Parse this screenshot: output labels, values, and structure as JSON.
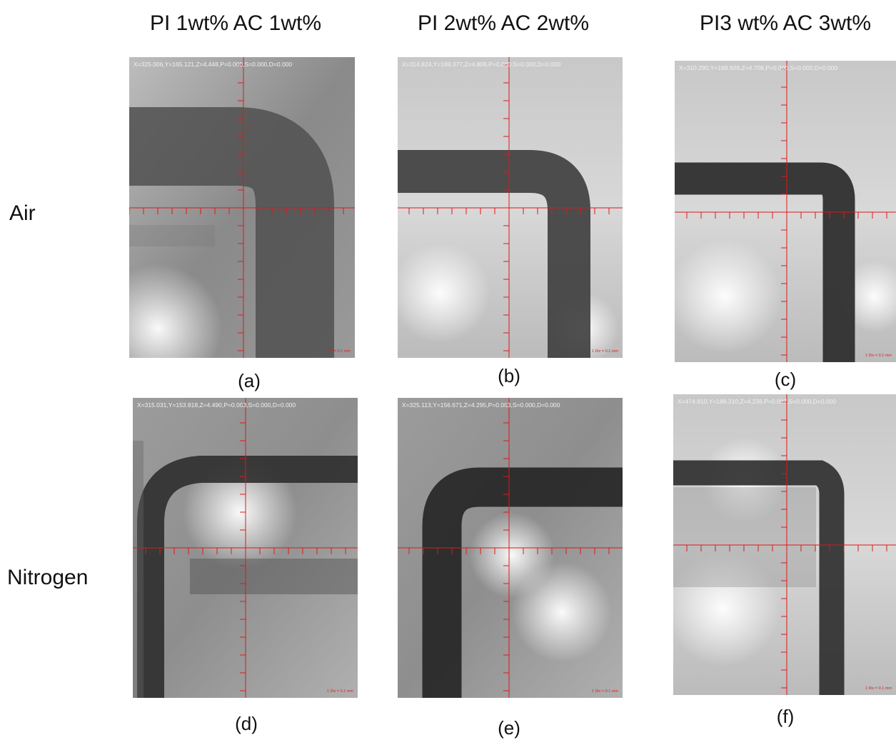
{
  "column_headers": [
    "PI 1wt% AC 1wt%",
    "PI 2wt% AC 2wt%",
    "PI3 wt% AC 3wt%"
  ],
  "row_labels": [
    "Air",
    "Nitrogen"
  ],
  "panels": [
    {
      "caption": "(a)",
      "overlay": "X=325.006,Y=165.121,Z=4.448,P=0.000,S=0.000,D=0.000",
      "scale": "1 Div = 0.1 mm"
    },
    {
      "caption": "(b)",
      "overlay": "X=314.824,Y=169.377,Z=4.806,P=0.000,S=0.000,D=0.000",
      "scale": "1 Div = 0.1 mm"
    },
    {
      "caption": "(c)",
      "overlay": "X=310.290,Y=169.609,Z=4.708,P=0.000,S=0.000,D=0.000",
      "scale": "1 Div = 0.1 mm"
    },
    {
      "caption": "(d)",
      "overlay": "X=315.031,Y=153.818,Z=4.490,P=0.063,S=0.000,D=0.000",
      "scale": "1 Div = 0.1 mm"
    },
    {
      "caption": "(e)",
      "overlay": "X=325.113,Y=156.671,Z=4.295,P=0.063,S=0.000,D=0.000",
      "scale": "1 Div = 0.1 mm"
    },
    {
      "caption": "(f)",
      "overlay": "X=474.810,Y=189.210,Z=4.236,P=0.087,S=0.000,D=0.000",
      "scale": "1 Div = 0.1 mm"
    }
  ]
}
